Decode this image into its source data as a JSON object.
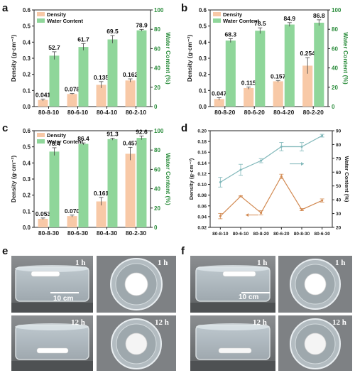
{
  "colors": {
    "density_bar": "#f8c9a7",
    "water_bar": "#8fd69a",
    "line_water": "#7fb7b9",
    "line_density": "#d28a52",
    "label_color": "#111111"
  },
  "panels": {
    "a": {
      "letter": "a"
    },
    "b": {
      "letter": "b"
    },
    "c": {
      "letter": "c"
    },
    "d": {
      "letter": "d"
    },
    "e": {
      "letter": "e"
    },
    "f": {
      "letter": "f"
    }
  },
  "photos": {
    "e": {
      "top_left_time": "1 h",
      "top_right_time": "1 h",
      "bottom_left_time": "12 h",
      "bottom_right_time": "12 h",
      "scale_bar": "10 cm"
    },
    "f": {
      "top_left_time": "1 h",
      "top_right_time": "1 h",
      "bottom_left_time": "12 h",
      "bottom_right_time": "12 h",
      "scale_bar": "10 cm"
    }
  },
  "chart_data": [
    {
      "id": "a",
      "type": "bar",
      "categories": [
        "80-8-10",
        "80-6-10",
        "80-4-10",
        "80-2-10"
      ],
      "series": [
        {
          "name": "Density",
          "values": [
            0.041,
            0.078,
            0.135,
            0.162
          ],
          "labels": [
            "0.041",
            "0.078",
            "0.135",
            "0.162"
          ],
          "errors": [
            0.006,
            0.003,
            0.02,
            0.01
          ],
          "axis": "left"
        },
        {
          "name": "Water Content",
          "values": [
            52.7,
            61.7,
            69.5,
            78.9
          ],
          "labels": [
            "52.7",
            "61.7",
            "69.5",
            "78.9"
          ],
          "errors": [
            4,
            3.5,
            4,
            1
          ],
          "axis": "right"
        }
      ],
      "ylabel": "Density (g·cm⁻³)",
      "ylabel_right": "Water Content (%)",
      "ylim": [
        0,
        0.6
      ],
      "yticks": [
        "0.0",
        "0.1",
        "0.2",
        "0.3",
        "0.4",
        "0.5",
        "0.6"
      ],
      "ylim_right": [
        0,
        100
      ],
      "yticks_right": [
        "0",
        "20",
        "40",
        "60",
        "80",
        "100"
      ],
      "legend": "top-left",
      "grid": false
    },
    {
      "id": "b",
      "type": "bar",
      "categories": [
        "80-8-20",
        "80-6-20",
        "80-4-20",
        "80-2-20"
      ],
      "series": [
        {
          "name": "Density",
          "values": [
            0.047,
            0.115,
            0.157,
            0.254
          ],
          "labels": [
            "0.047",
            "0.115",
            "0.157",
            "0.254"
          ],
          "errors": [
            0.008,
            0.007,
            0.005,
            0.05
          ],
          "axis": "left"
        },
        {
          "name": "Water Content",
          "values": [
            68.3,
            78.5,
            84.9,
            86.8
          ],
          "labels": [
            "68.3",
            "78.5",
            "84.9",
            "86.8"
          ],
          "errors": [
            2,
            3,
            2,
            3
          ],
          "axis": "right"
        }
      ],
      "ylabel": "Density (g·cm⁻³)",
      "ylabel_right": "Water Content (%)",
      "ylim": [
        0,
        0.6
      ],
      "yticks": [
        "0.0",
        "0.1",
        "0.2",
        "0.3",
        "0.4",
        "0.5",
        "0.6"
      ],
      "ylim_right": [
        0,
        100
      ],
      "yticks_right": [
        "0",
        "20",
        "40",
        "60",
        "80",
        "100"
      ],
      "legend": "top-left",
      "grid": false
    },
    {
      "id": "c",
      "type": "bar",
      "categories": [
        "80-8-30",
        "80-6-30",
        "80-4-30",
        "80-2-30"
      ],
      "series": [
        {
          "name": "Density",
          "values": [
            0.053,
            0.07,
            0.161,
            0.457
          ],
          "labels": [
            "0.053",
            "0.070",
            "0.161",
            "0.457"
          ],
          "errors": [
            0.005,
            0.006,
            0.025,
            0.04
          ],
          "axis": "left"
        },
        {
          "name": "Water Content",
          "values": [
            78.4,
            86.4,
            91.3,
            92.6
          ],
          "labels": [
            "78.4",
            "86.4",
            "91.3",
            "92.6"
          ],
          "errors": [
            4,
            1,
            1,
            2
          ],
          "axis": "right"
        }
      ],
      "ylabel": "Density (g·cm⁻³)",
      "ylabel_right": "Water Content (%)",
      "ylim": [
        0,
        0.6
      ],
      "yticks": [
        "0.0",
        "0.1",
        "0.2",
        "0.3",
        "0.4",
        "0.5",
        "0.6"
      ],
      "ylim_right": [
        0,
        100
      ],
      "yticks_right": [
        "0",
        "20",
        "40",
        "60",
        "80",
        "100"
      ],
      "legend": "top-left",
      "grid": false
    },
    {
      "id": "d",
      "type": "line",
      "categories": [
        "80-8-10",
        "80-6-10",
        "80-8-20",
        "80-6-20",
        "80-8-30",
        "80-6-30"
      ],
      "series": [
        {
          "name": "",
          "values": [
            0.041,
            0.078,
            0.047,
            0.115,
            0.053,
            0.07
          ],
          "errors": [
            0.005,
            0.001,
            0.004,
            0.004,
            0.002,
            0.003
          ],
          "axis": "left"
        },
        {
          "name": "",
          "values": [
            52.7,
            61.7,
            68.3,
            78.5,
            78.4,
            86.4
          ],
          "errors": [
            3.5,
            4,
            1.5,
            3,
            3,
            1
          ],
          "axis": "right"
        }
      ],
      "ylabel": "Density (g·cm⁻³)",
      "ylabel_right": "Water Content (%)",
      "ylim": [
        0.02,
        0.2
      ],
      "yticks": [
        "0.02",
        "0.04",
        "0.06",
        "0.08",
        "0.10",
        "0.12",
        "0.14",
        "0.16",
        "0.18",
        "0.20"
      ],
      "ylim_right": [
        20,
        90
      ],
      "yticks_right": [
        "20",
        "30",
        "40",
        "50",
        "60",
        "70",
        "80",
        "90"
      ],
      "grid": false
    }
  ]
}
